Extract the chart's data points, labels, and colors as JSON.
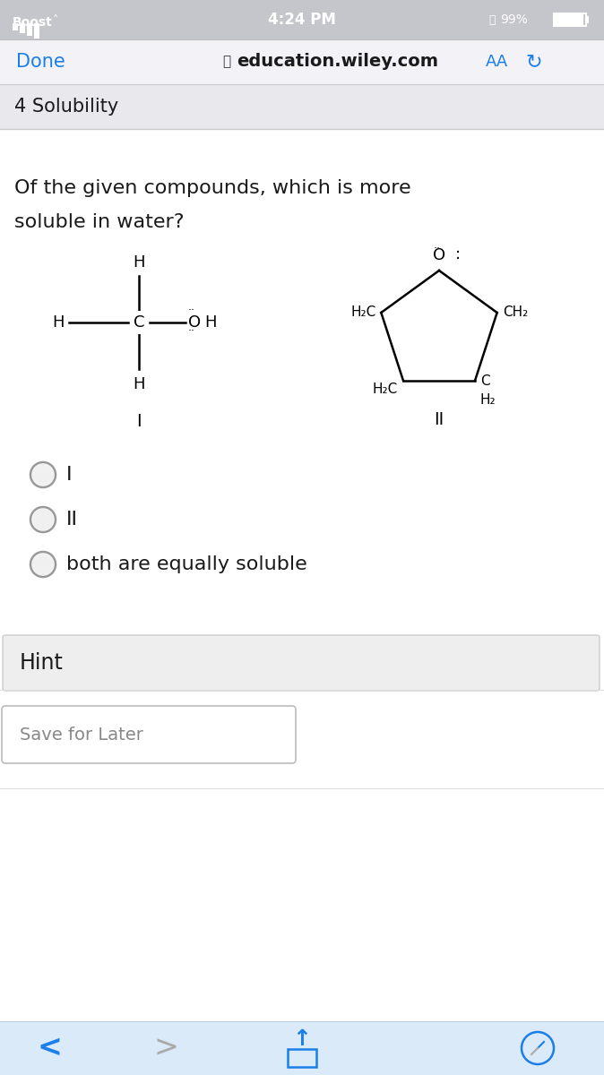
{
  "bg_top_bar": "#c5c5cc",
  "bg_nav_bar": "#f2f2f7",
  "bg_white": "#ffffff",
  "bg_hint": "#eeeeee",
  "bg_bottom_bar": "#daeaf8",
  "text_black": "#1a1a1a",
  "text_blue": "#1a7fe8",
  "text_gray": "#888888",
  "nav_done": "Done",
  "nav_url": "education.wiley.com",
  "section_title": "4 Solubility",
  "question_line1": "Of the given compounds, which is more",
  "question_line2": "soluble in water?",
  "label_I": "I",
  "label_II": "II",
  "option1": "I",
  "option2": "II",
  "option3": "both are equally soluble",
  "hint_text": "Hint",
  "save_text": "Save for Later"
}
